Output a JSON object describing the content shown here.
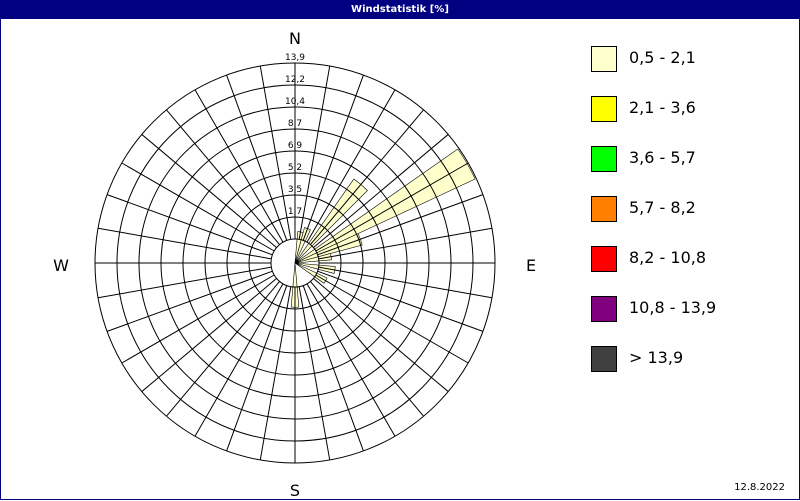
{
  "title": "Windstatistik [%]",
  "date": "12.8.2022",
  "chart_data": {
    "type": "wind-rose",
    "title": "Windstatistik [%]",
    "compass": {
      "N": "N",
      "E": "E",
      "S": "S",
      "W": "W"
    },
    "ring_labels": [
      "1,7",
      "3,5",
      "5,2",
      "6,9",
      "8,7",
      "10,4",
      "12,2",
      "13,9"
    ],
    "rmax": 13.9,
    "direction_step_deg": 10,
    "legend": [
      {
        "label": "0,5 - 2,1",
        "color": "#FFFFCC"
      },
      {
        "label": "2,1 - 3,6",
        "color": "#FFFF00"
      },
      {
        "label": "3,6 - 5,7",
        "color": "#00FF00"
      },
      {
        "label": "5,7 - 8,2",
        "color": "#FF8000"
      },
      {
        "label": "8,2 - 10,8",
        "color": "#FF0000"
      },
      {
        "label": "10,8 - 13,9",
        "color": "#800080"
      },
      {
        "label": " > 13,9",
        "color": "#404040"
      }
    ],
    "series": [
      {
        "class": "0,5 - 2,1",
        "directions_deg": [
          10,
          20,
          40,
          60,
          70,
          80,
          100,
          120,
          180
        ],
        "values": [
          0.6,
          1.0,
          6.2,
          13.8,
          3.6,
          1.0,
          1.3,
          0.9,
          1.6
        ]
      }
    ]
  }
}
